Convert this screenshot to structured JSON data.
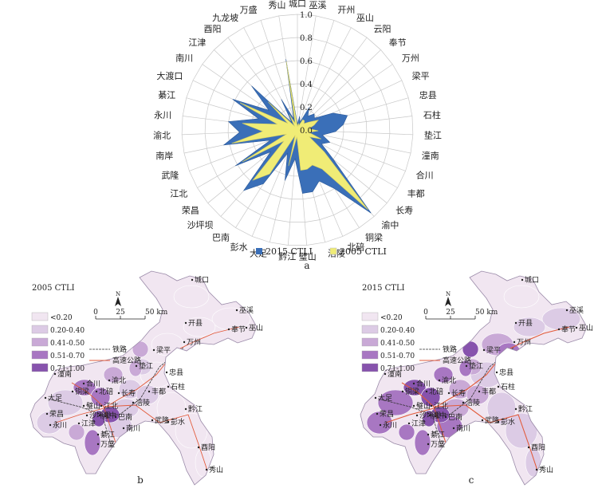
{
  "chart_data": [
    {
      "type": "radar",
      "panel_label": "a",
      "axis_ticks": [
        "0.0",
        "0.2",
        "0.4",
        "0.6",
        "0.8",
        "1.0"
      ],
      "rlim": [
        0,
        1.0
      ],
      "categories": [
        "城口",
        "巫溪",
        "开州",
        "巫山",
        "云阳",
        "奉节",
        "万州",
        "梁平",
        "忠县",
        "石柱",
        "垫江",
        "潼南",
        "合川",
        "丰都",
        "长寿",
        "渝中",
        "铜梁",
        "北碚",
        "涪陵",
        "璧山",
        "黔江",
        "大足",
        "彭水",
        "巴南",
        "沙坪坝",
        "荣昌",
        "江北",
        "武隆",
        "南岸",
        "渝北",
        "永川",
        "綦江",
        "大渡口",
        "南川",
        "江津",
        "酉阳",
        "九龙坡",
        "万盛",
        "秀山"
      ],
      "series": [
        {
          "name": "2015 CTLI",
          "color": "#3a6fb8",
          "values": [
            0.05,
            0.12,
            0.07,
            0.22,
            0.15,
            0.2,
            0.18,
            0.34,
            0.45,
            0.4,
            0.33,
            0.22,
            0.3,
            0.24,
            0.4,
            0.96,
            0.6,
            0.48,
            0.55,
            0.55,
            0.25,
            0.45,
            0.22,
            0.55,
            0.7,
            0.3,
            0.62,
            0.25,
            0.65,
            0.5,
            0.6,
            0.35,
            0.62,
            0.3,
            0.55,
            0.08,
            0.3,
            0.1,
            0.62
          ]
        },
        {
          "name": "2005 CTLI",
          "color": "#f0ec76",
          "values": [
            0.03,
            0.06,
            0.04,
            0.1,
            0.1,
            0.08,
            0.12,
            0.2,
            0.15,
            0.1,
            0.18,
            0.1,
            0.22,
            0.12,
            0.3,
            0.92,
            0.4,
            0.33,
            0.35,
            0.35,
            0.06,
            0.32,
            0.05,
            0.45,
            0.58,
            0.15,
            0.55,
            0.1,
            0.58,
            0.3,
            0.48,
            0.18,
            0.55,
            0.1,
            0.35,
            0.04,
            0.15,
            0.06,
            0.6
          ]
        }
      ]
    },
    {
      "type": "map",
      "panel_label": "b",
      "title": "2005 CTLI",
      "legend": [
        "<0.20",
        "0.20-0.40",
        "0.41-0.50",
        "0.51-0.70",
        "0.71-1.00"
      ],
      "legend_colors": [
        "#f1e6f1",
        "#dccbe5",
        "#c9a9d6",
        "#a877c2",
        "#8753ad"
      ],
      "scale": [
        "0",
        "25",
        "50 km"
      ],
      "north": "N",
      "railway": "铁路",
      "highway": "高速公路",
      "labels": [
        "城口",
        "巫溪",
        "开县",
        "奉节",
        "巫山",
        "万州",
        "梁平",
        "忠县",
        "垫江",
        "石柱",
        "丰都",
        "长寿",
        "涪陵",
        "合川",
        "潼南",
        "铜梁",
        "北碚",
        "大足",
        "璧山",
        "渝北",
        "江北",
        "荣昌",
        "永川",
        "沙坪坝",
        "渝中",
        "巴南",
        "江津",
        "綦江",
        "万盛",
        "南川",
        "武隆",
        "彭水",
        "黔江",
        "酉阳",
        "秀山"
      ]
    },
    {
      "type": "map",
      "panel_label": "c",
      "title": "2015 CTLI",
      "legend": [
        "<0.20",
        "0.20-0.40",
        "0.41-0.50",
        "0.51-0.70",
        "0.71-1.00"
      ],
      "legend_colors": [
        "#f1e6f1",
        "#dccbe5",
        "#c9a9d6",
        "#a877c2",
        "#8753ad"
      ],
      "scale": [
        "0",
        "25",
        "50 km"
      ],
      "north": "N",
      "railway": "铁路",
      "highway": "高速公路",
      "labels": [
        "城口",
        "巫溪",
        "开县",
        "奉节",
        "巫山",
        "万州",
        "梁平",
        "忠县",
        "垫江",
        "石柱",
        "丰都",
        "长寿",
        "涪陵",
        "合川",
        "潼南",
        "铜梁",
        "北碚",
        "大足",
        "璧山",
        "渝北",
        "江北",
        "荣昌",
        "永川",
        "沙坪坝",
        "渝中",
        "巴南",
        "江津",
        "綦江",
        "万盛",
        "南川",
        "武隆",
        "彭水",
        "黔江",
        "酉阳",
        "秀山"
      ]
    }
  ]
}
